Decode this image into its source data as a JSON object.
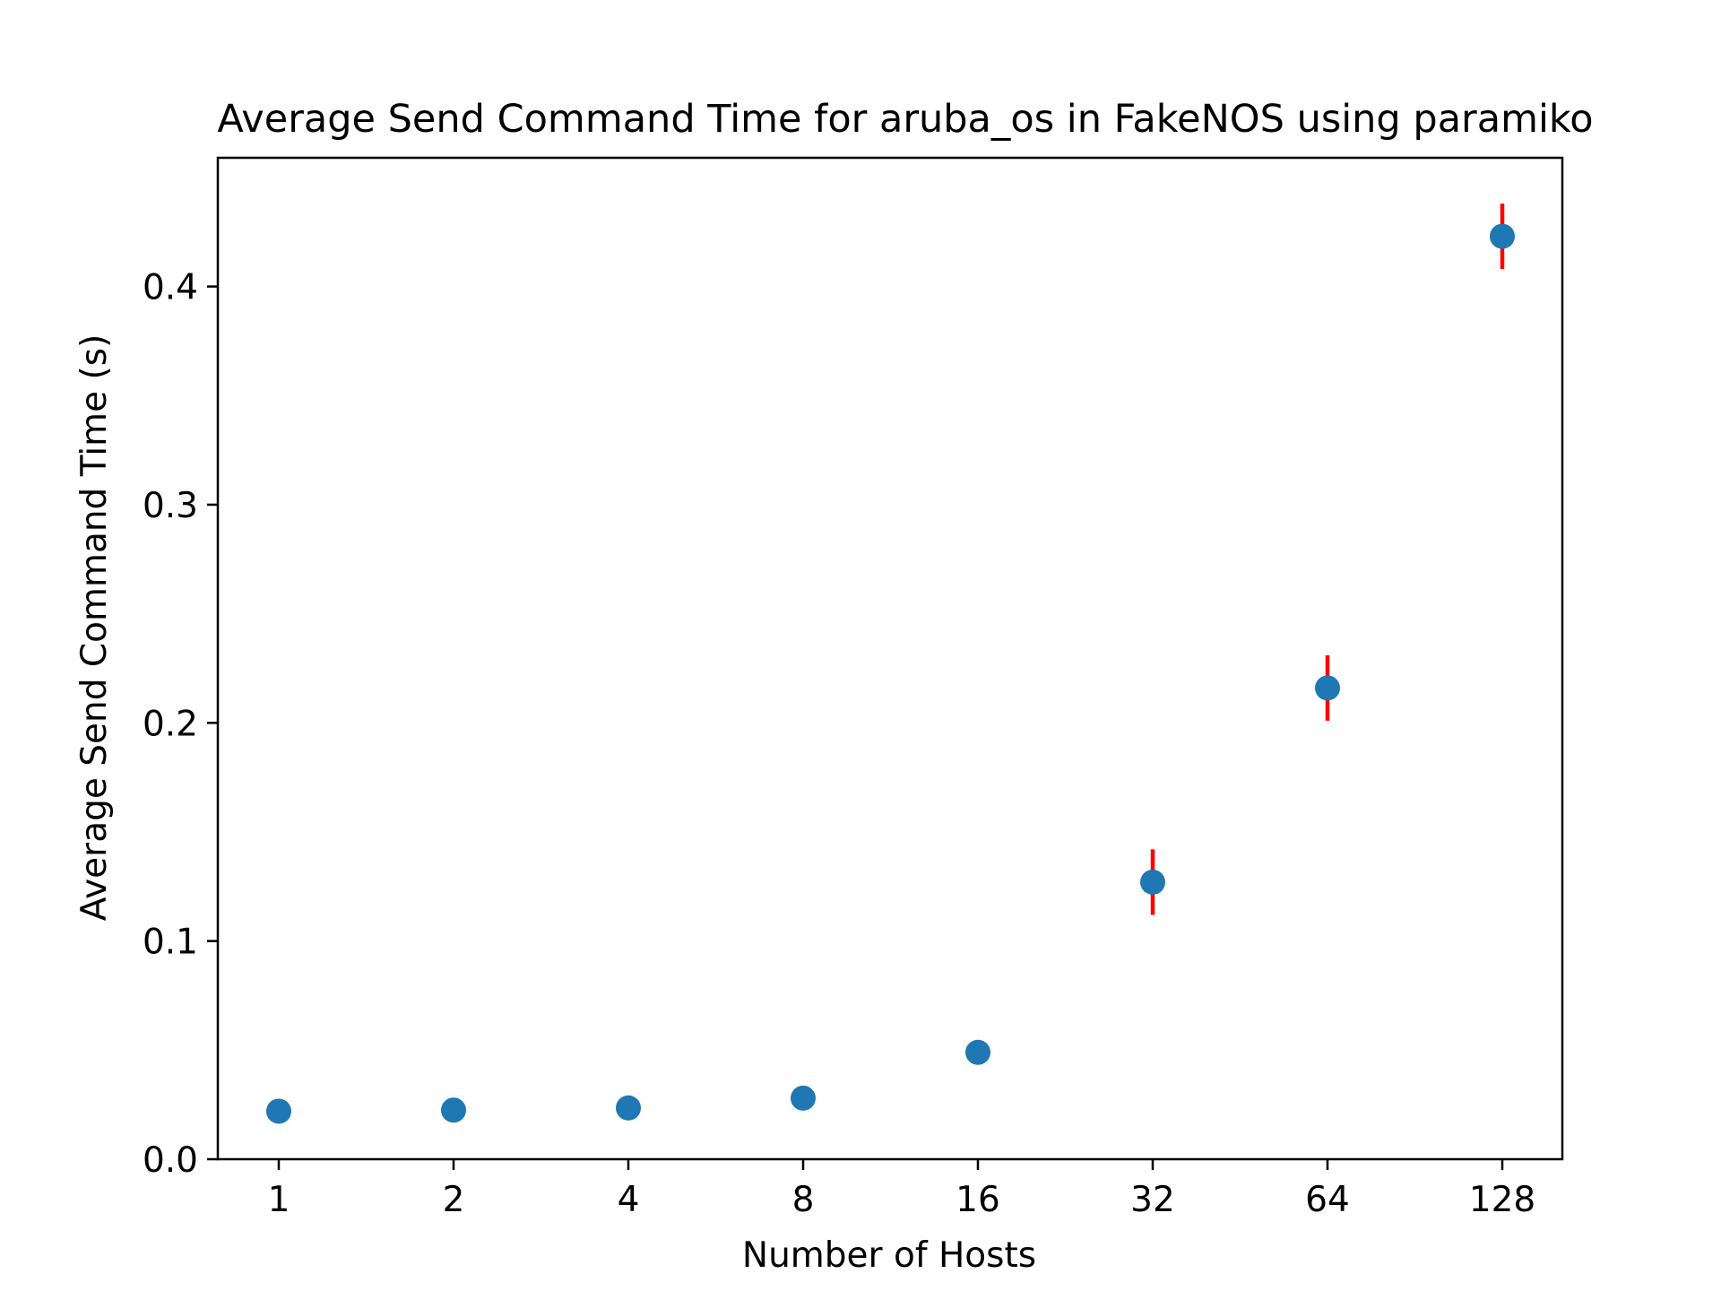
{
  "chart_data": {
    "type": "scatter",
    "title": "Average Send Command Time for aruba_os in FakeNOS using paramiko",
    "xlabel": "Number of Hosts",
    "ylabel": "Average Send Command Time (s)",
    "x_scale": "log2",
    "categories": [
      "1",
      "2",
      "4",
      "8",
      "16",
      "32",
      "64",
      "128"
    ],
    "x": [
      1,
      2,
      4,
      8,
      16,
      32,
      64,
      128
    ],
    "y_ticks": [
      "0.0",
      "0.1",
      "0.2",
      "0.3",
      "0.4"
    ],
    "ylim": [
      0,
      0.459
    ],
    "grid": false,
    "series": [
      {
        "values": [
          0.022,
          0.0225,
          0.0235,
          0.028,
          0.049,
          0.127,
          0.216,
          0.423
        ],
        "errors": [
          0.0,
          0.0,
          0.0005,
          0.001,
          0.005,
          0.015,
          0.015,
          0.015
        ],
        "marker_color": "#1f77b4",
        "error_color": "#ff0000"
      }
    ]
  }
}
